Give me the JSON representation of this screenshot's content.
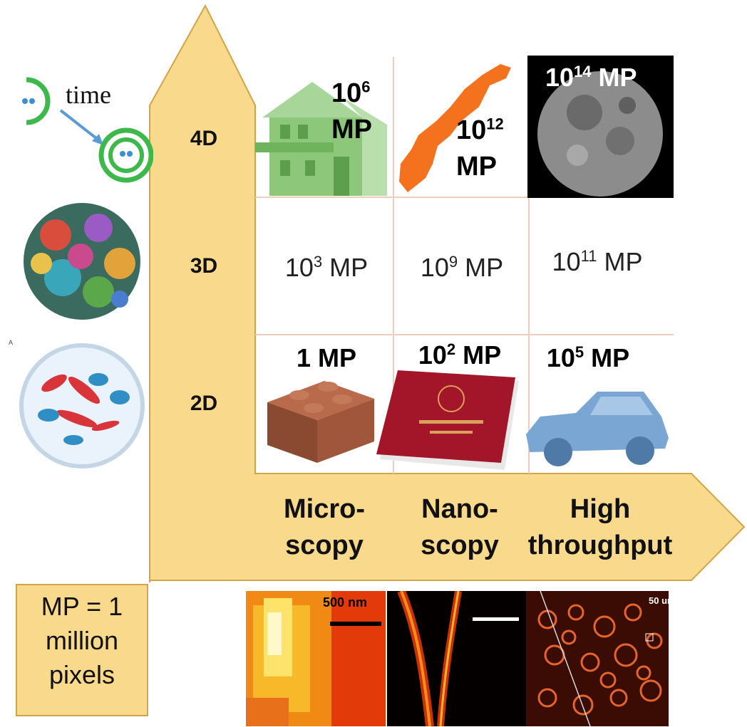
{
  "vertical_axis": {
    "levels": [
      {
        "label": "4D"
      },
      {
        "label": "3D"
      },
      {
        "label": "2D"
      }
    ],
    "time_label": "time"
  },
  "horizontal_axis": {
    "columns": [
      {
        "line1": "Micro-",
        "line2": "scopy"
      },
      {
        "line1": "Nano-",
        "line2": "scopy"
      },
      {
        "line1": "High",
        "line2": "throughput"
      }
    ]
  },
  "cells": {
    "d4": [
      {
        "base": "10",
        "exp": "6",
        "unit": "MP"
      },
      {
        "base": "10",
        "exp": "12",
        "unit": "MP"
      },
      {
        "base": "10",
        "exp": "14",
        "unit": "MP"
      }
    ],
    "d3": [
      {
        "base": "10",
        "exp": "3",
        "unit": "MP"
      },
      {
        "base": "10",
        "exp": "9",
        "unit": "MP"
      },
      {
        "base": "10",
        "exp": "11",
        "unit": "MP"
      }
    ],
    "d2": [
      {
        "text": "1 MP"
      },
      {
        "base": "10",
        "exp": "2",
        "unit": "MP"
      },
      {
        "base": "10",
        "exp": "5",
        "unit": "MP"
      }
    ]
  },
  "legend": {
    "line1": "MP = 1",
    "line2": "million",
    "line3": "pixels"
  },
  "bottom_images": {
    "scale_label": "500 nm",
    "ht_scale_label": "50 un"
  },
  "colors": {
    "arrow_fill": "#f9d98b",
    "arrow_stroke": "#d2a44a",
    "house": "#8cc77a",
    "norway": "#f4711d",
    "passport": "#a3162a",
    "brick": "#a0563a",
    "car": "#7aa6d3"
  },
  "icons": [
    "cell-division-icon",
    "virus-icon",
    "petri-dish-icon",
    "house-icon",
    "norway-map-icon",
    "moon-icon",
    "lego-brick-icon",
    "passport-icon",
    "car-icon"
  ]
}
